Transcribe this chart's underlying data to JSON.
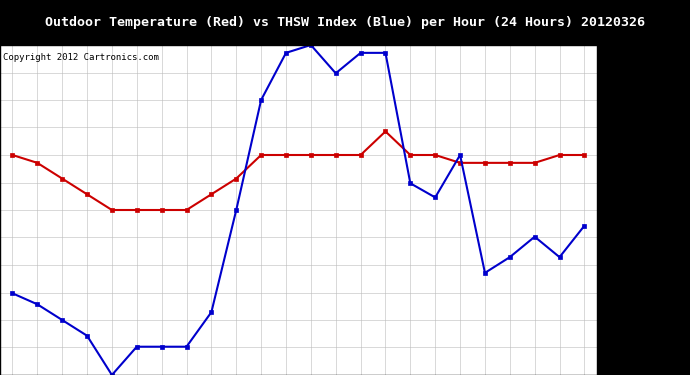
{
  "title": "Outdoor Temperature (Red) vs THSW Index (Blue) per Hour (24 Hours) 20120326",
  "copyright": "Copyright 2012 Cartronics.com",
  "hours": [
    0,
    1,
    2,
    3,
    4,
    5,
    6,
    7,
    8,
    9,
    10,
    11,
    12,
    13,
    14,
    15,
    16,
    17,
    18,
    19,
    20,
    21,
    22,
    23
  ],
  "red_temp": [
    38.0,
    37.5,
    36.5,
    35.5,
    34.5,
    34.5,
    34.5,
    34.5,
    35.5,
    36.5,
    38.0,
    38.0,
    38.0,
    38.0,
    38.0,
    39.5,
    38.0,
    38.0,
    37.5,
    37.5,
    37.5,
    37.5,
    38.0,
    38.0
  ],
  "blue_thsw": [
    29.2,
    28.5,
    27.5,
    26.5,
    24.0,
    25.8,
    25.8,
    25.8,
    28.0,
    34.5,
    41.5,
    44.5,
    45.0,
    43.2,
    44.5,
    44.5,
    36.2,
    35.3,
    38.0,
    30.5,
    31.5,
    32.8,
    31.5,
    33.5
  ],
  "ylim": [
    24.0,
    45.0
  ],
  "yticks": [
    24.0,
    25.8,
    27.5,
    29.2,
    31.0,
    32.8,
    34.5,
    36.2,
    38.0,
    39.8,
    41.5,
    43.2,
    45.0
  ],
  "red_color": "#cc0000",
  "blue_color": "#0000cc",
  "plot_bg": "#ffffff",
  "grid_color": "#bbbbbb",
  "title_fontsize": 9.5,
  "copyright_fontsize": 6.5,
  "tick_fontsize": 7.0
}
